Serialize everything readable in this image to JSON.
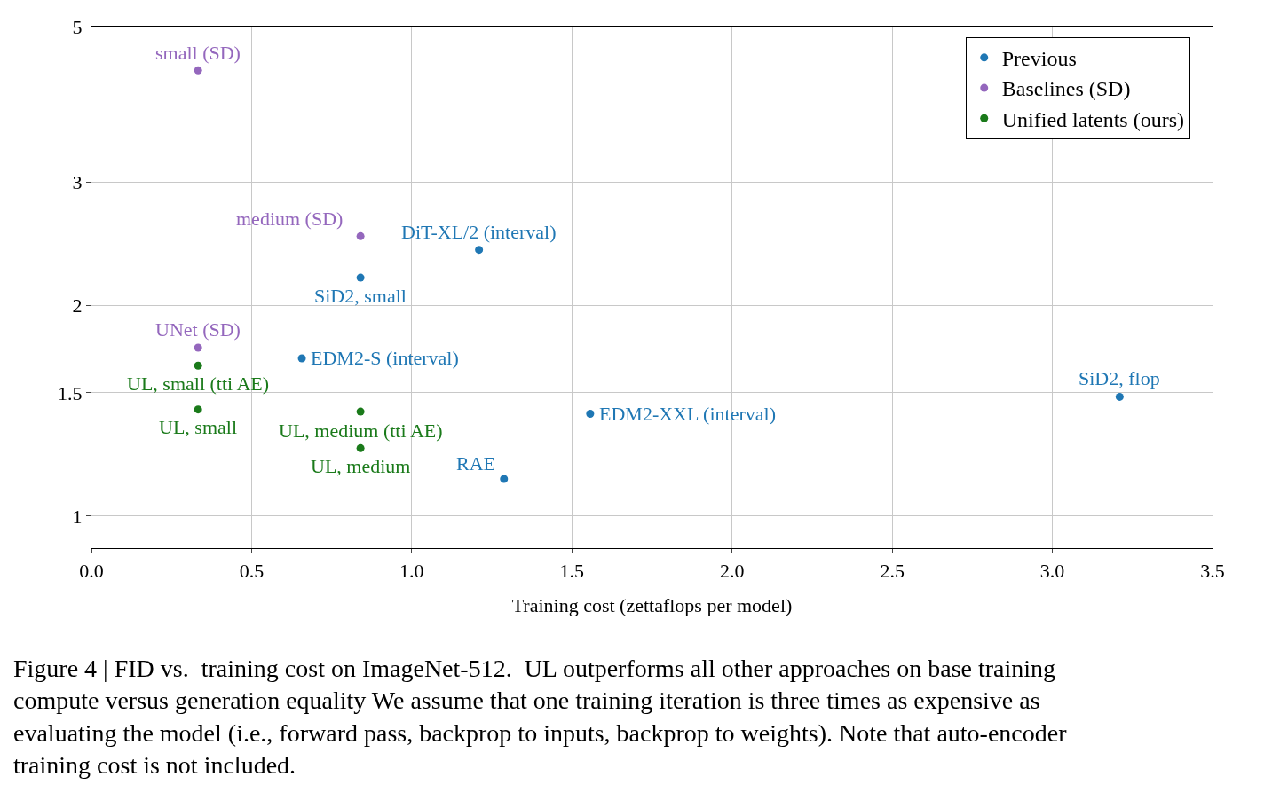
{
  "chart_data": {
    "type": "scatter",
    "xlabel": "Training cost (zettaflops per model)",
    "log": "y",
    "grid": true,
    "legend": "top right",
    "marker": "circle",
    "xlim": [
      0,
      3.5
    ],
    "xticks": [
      {
        "value": 0,
        "label": "0.0"
      },
      0.5,
      {
        "value": 1,
        "label": "1.0"
      },
      1.5,
      {
        "value": 2,
        "label": "2.0"
      },
      2.5,
      {
        "value": 3,
        "label": "3.0"
      },
      3.5
    ],
    "ylim": [
      0.9,
      5
    ],
    "yticks": [
      1,
      1.5,
      2,
      3,
      5
    ],
    "series": [
      {
        "name": "Previous",
        "color": "#1f77b4",
        "x": [
          1.21,
          0.84,
          0.657,
          1.557,
          1.288,
          3.21
        ],
        "values": [
          2.4,
          2.19,
          1.68,
          1.4,
          1.13,
          1.48
        ]
      },
      {
        "name": "Baselines (SD)",
        "color": "#9467bd",
        "x": [
          0.333,
          0.84,
          0.333
        ],
        "values": [
          4.33,
          2.51,
          1.74
        ]
      },
      {
        "name": "Unified latents (ours)",
        "color": "#1a7a1a",
        "x": [
          0.333,
          0.333,
          0.84,
          0.84
        ],
        "values": [
          1.64,
          1.42,
          1.41,
          1.25
        ]
      }
    ],
    "annotations": [
      {
        "text": "DiT-XL/2 (interval)",
        "x": 1.21,
        "y": 2.4
      },
      {
        "text": "SiD2, small",
        "x": 0.84,
        "y": 2.19
      },
      {
        "text": "EDM2-S (interval)",
        "x": 0.657,
        "y": 1.68
      },
      {
        "text": "EDM2-XXL (interval)",
        "x": 1.557,
        "y": 1.4
      },
      {
        "text": "RAE",
        "x": 1.288,
        "y": 1.13
      },
      {
        "text": "SiD2, flop",
        "x": 3.21,
        "y": 1.48
      },
      {
        "text": "small (SD)",
        "x": 0.333,
        "y": 4.33
      },
      {
        "text": "medium (SD)",
        "x": 0.84,
        "y": 2.51
      },
      {
        "text": "UNet (SD)",
        "x": 0.333,
        "y": 1.74
      },
      {
        "text": "UL, small (tti AE)",
        "x": 0.333,
        "y": 1.64
      },
      {
        "text": "UL, small",
        "x": 0.333,
        "y": 1.42
      },
      {
        "text": "UL, medium (tti AE)",
        "x": 0.84,
        "y": 1.41
      },
      {
        "text": "UL, medium",
        "x": 0.84,
        "y": 1.25
      },
      "Figure 4 | FID vs.  training cost on ImageNet-512.  UL outperforms all other approaches on base training compute versus generation equality We assume that one training iteration is three times as expensive as evaluating the model (i.e., forward pass, backprop to inputs, backprop to weights). Note that auto-encoder training cost is not included."
    ]
  }
}
